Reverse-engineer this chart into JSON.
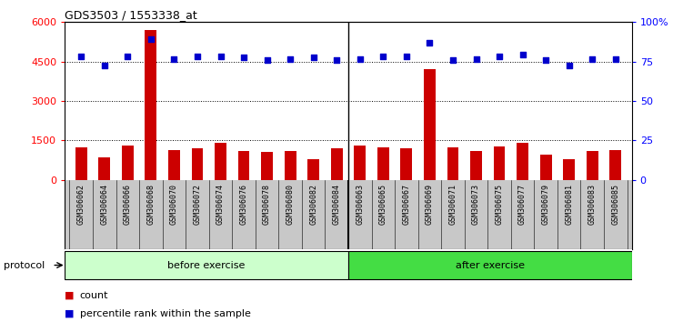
{
  "title": "GDS3503 / 1553338_at",
  "categories": [
    "GSM306062",
    "GSM306064",
    "GSM306066",
    "GSM306068",
    "GSM306070",
    "GSM306072",
    "GSM306074",
    "GSM306076",
    "GSM306078",
    "GSM306080",
    "GSM306082",
    "GSM306084",
    "GSM306063",
    "GSM306065",
    "GSM306067",
    "GSM306069",
    "GSM306071",
    "GSM306073",
    "GSM306075",
    "GSM306077",
    "GSM306079",
    "GSM306081",
    "GSM306083",
    "GSM306085"
  ],
  "bar_values": [
    1250,
    850,
    1300,
    5700,
    1150,
    1200,
    1420,
    1100,
    1050,
    1100,
    800,
    1200,
    1300,
    1250,
    1200,
    4200,
    1250,
    1100,
    1280,
    1420,
    950,
    800,
    1100,
    1150
  ],
  "dot_values": [
    4700,
    4350,
    4700,
    5350,
    4600,
    4700,
    4700,
    4650,
    4550,
    4600,
    4650,
    4550,
    4600,
    4700,
    4700,
    5200,
    4550,
    4600,
    4700,
    4750,
    4550,
    4350,
    4600,
    4600
  ],
  "before_count": 12,
  "after_count": 12,
  "before_label": "before exercise",
  "after_label": "after exercise",
  "protocol_label": "protocol",
  "bar_color": "#cc0000",
  "dot_color": "#0000cc",
  "before_bg": "#ccffcc",
  "after_bg": "#44dd44",
  "xtick_bg": "#c8c8c8",
  "ylim_left": [
    0,
    6000
  ],
  "ylim_right": [
    0,
    100
  ],
  "yticks_left": [
    0,
    1500,
    3000,
    4500,
    6000
  ],
  "yticks_right": [
    0,
    25,
    50,
    75,
    100
  ],
  "yticklabels_left": [
    "0",
    "1500",
    "3000",
    "4500",
    "6000"
  ],
  "yticklabels_right": [
    "0",
    "25",
    "50",
    "75",
    "100%"
  ],
  "legend_count_label": "count",
  "legend_pct_label": "percentile rank within the sample",
  "bar_width": 0.5
}
